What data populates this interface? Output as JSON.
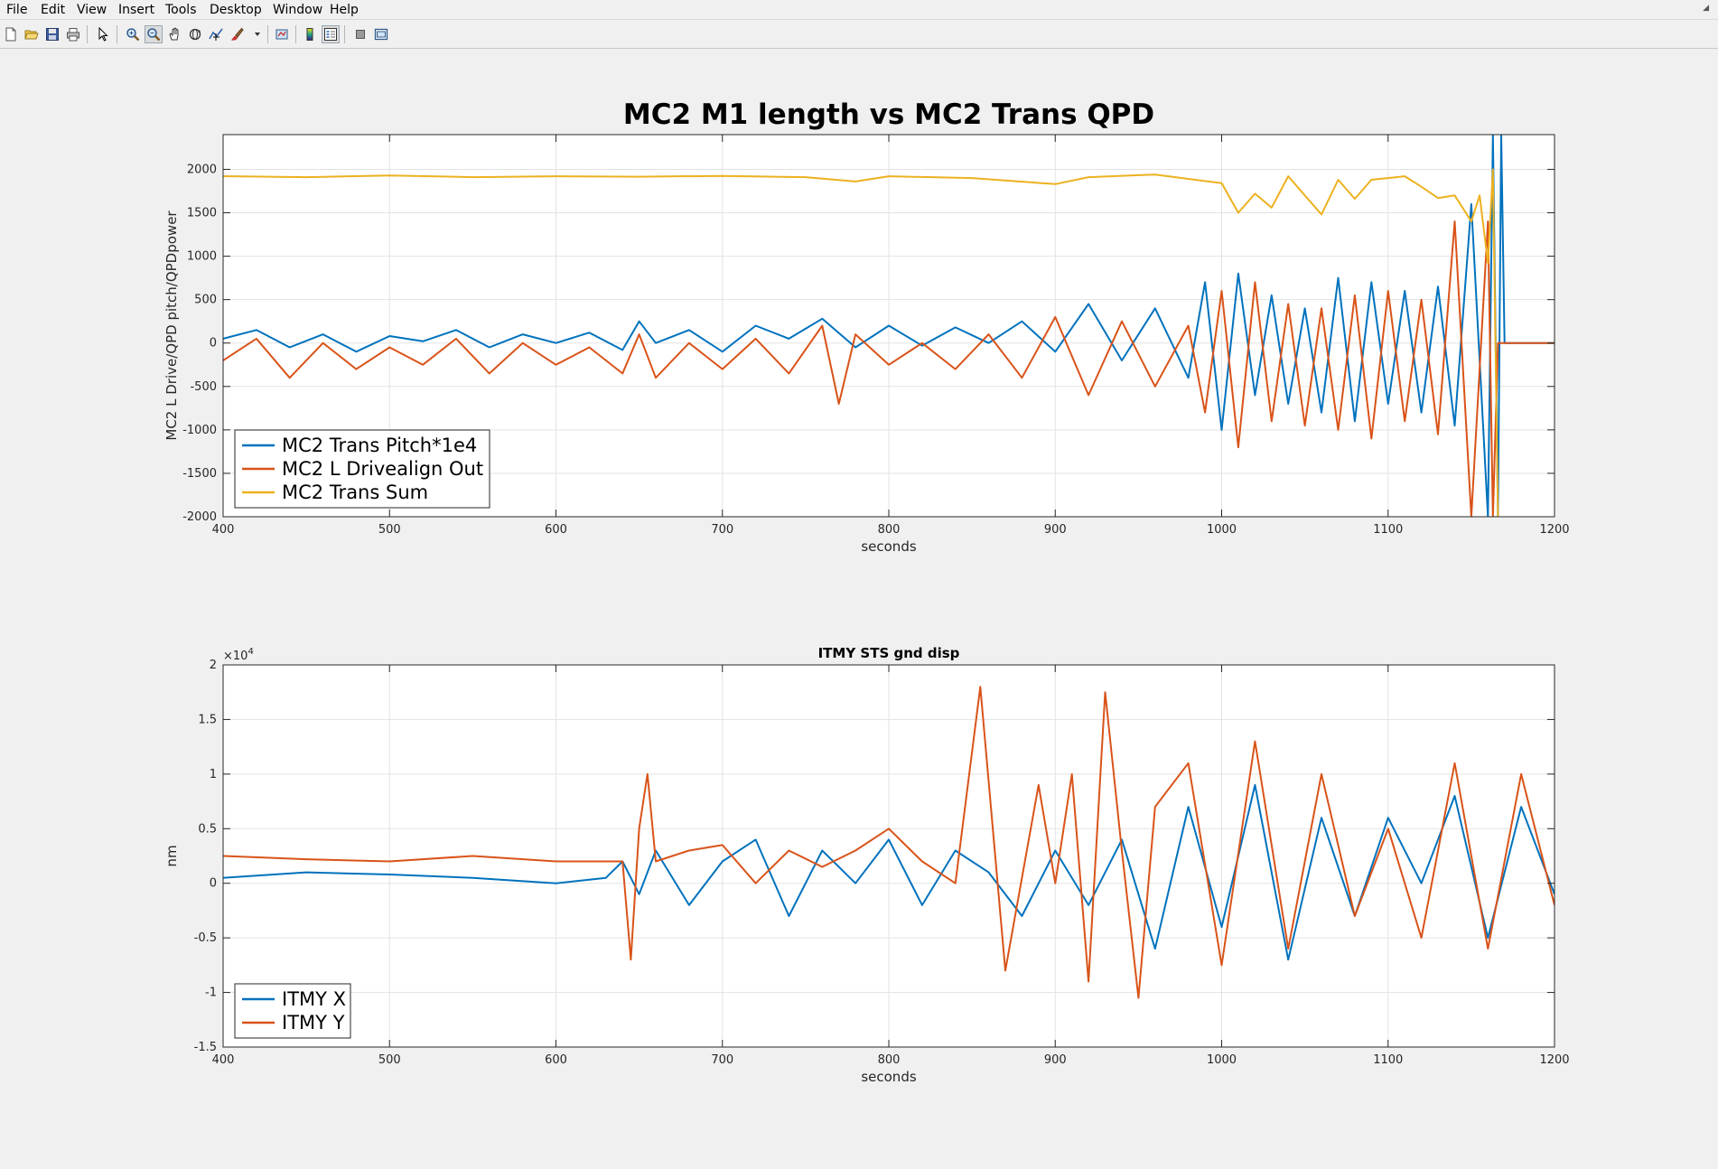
{
  "menu": [
    "File",
    "Edit",
    "View",
    "Insert",
    "Tools",
    "Desktop",
    "Window",
    "Help"
  ],
  "toolbar": {
    "buttons": [
      "new-figure-icon",
      "open-file-icon",
      "save-icon",
      "print-icon",
      "pointer-icon",
      "zoom-in-icon",
      "zoom-out-icon",
      "pan-icon",
      "rotate-icon",
      "data-cursor-icon",
      "brush-icon",
      "link-plot-icon",
      "colorbar-icon",
      "legend-icon",
      "hide-plot-tools-icon",
      "show-plot-tools-icon"
    ]
  },
  "colors": {
    "blue": "#0072bd",
    "orange": "#d95319",
    "yellow": "#edb120"
  },
  "chart_data": [
    {
      "type": "line",
      "title": "MC2 M1 length vs MC2 Trans QPD",
      "xlabel": "seconds",
      "ylabel": "MC2 L Drive/QPD pitch/QPDpower",
      "xlim": [
        400,
        1200
      ],
      "ylim": [
        -2000,
        2400
      ],
      "xticks": [
        400,
        500,
        600,
        700,
        800,
        900,
        1000,
        1100,
        1200
      ],
      "yticks": [
        -2000,
        -1500,
        -1000,
        -500,
        0,
        500,
        1000,
        1500,
        2000
      ],
      "grid": true,
      "legend": "bottom-left",
      "series": [
        {
          "name": "MC2 Trans Pitch*1e4",
          "color": "#0072bd",
          "x": [
            400,
            420,
            440,
            460,
            480,
            500,
            520,
            540,
            560,
            580,
            600,
            620,
            640,
            650,
            660,
            680,
            700,
            720,
            740,
            760,
            780,
            800,
            820,
            840,
            860,
            880,
            900,
            920,
            940,
            960,
            980,
            990,
            1000,
            1010,
            1020,
            1030,
            1040,
            1050,
            1060,
            1070,
            1080,
            1090,
            1100,
            1110,
            1120,
            1130,
            1140,
            1150,
            1160,
            1163,
            1166,
            1168,
            1170,
            1200
          ],
          "y": [
            50,
            150,
            -50,
            100,
            -100,
            80,
            20,
            150,
            -50,
            100,
            0,
            120,
            -80,
            250,
            0,
            150,
            -100,
            200,
            50,
            280,
            -50,
            200,
            -30,
            180,
            0,
            250,
            -100,
            450,
            -200,
            400,
            -400,
            700,
            -1000,
            800,
            -600,
            550,
            -700,
            400,
            -800,
            750,
            -900,
            700,
            -700,
            600,
            -800,
            650,
            -950,
            1600,
            -2000,
            2400,
            -2000,
            2400,
            0,
            0
          ]
        },
        {
          "name": "MC2 L Drivealign Out",
          "color": "#d95319",
          "x": [
            400,
            420,
            440,
            460,
            480,
            500,
            520,
            540,
            560,
            580,
            600,
            620,
            640,
            650,
            660,
            680,
            700,
            720,
            740,
            760,
            770,
            780,
            800,
            820,
            840,
            860,
            880,
            900,
            920,
            940,
            960,
            980,
            990,
            1000,
            1010,
            1020,
            1030,
            1040,
            1050,
            1060,
            1070,
            1080,
            1090,
            1100,
            1110,
            1120,
            1130,
            1140,
            1150,
            1160,
            1163,
            1166,
            1168,
            1200
          ],
          "y": [
            -200,
            50,
            -400,
            0,
            -300,
            -50,
            -250,
            50,
            -350,
            0,
            -250,
            -50,
            -350,
            100,
            -400,
            0,
            -300,
            50,
            -350,
            200,
            -700,
            100,
            -250,
            0,
            -300,
            100,
            -400,
            300,
            -600,
            250,
            -500,
            200,
            -800,
            600,
            -1200,
            700,
            -900,
            450,
            -950,
            400,
            -1000,
            550,
            -1100,
            600,
            -900,
            500,
            -1050,
            1400,
            -2000,
            1400,
            -2000,
            0,
            0,
            0
          ]
        },
        {
          "name": "MC2 Trans Sum",
          "color": "#edb120",
          "x": [
            400,
            450,
            500,
            550,
            600,
            650,
            700,
            750,
            780,
            800,
            850,
            900,
            920,
            960,
            980,
            1000,
            1010,
            1020,
            1030,
            1040,
            1050,
            1060,
            1070,
            1080,
            1090,
            1100,
            1110,
            1120,
            1130,
            1140,
            1150,
            1155,
            1160,
            1163,
            1166
          ],
          "y": [
            1920,
            1910,
            1930,
            1910,
            1920,
            1915,
            1925,
            1910,
            1860,
            1920,
            1900,
            1830,
            1910,
            1940,
            1890,
            1840,
            1500,
            1720,
            1560,
            1920,
            1700,
            1480,
            1880,
            1660,
            1880,
            1900,
            1920,
            1800,
            1670,
            1700,
            1400,
            1700,
            920,
            2000,
            -2000
          ]
        }
      ]
    },
    {
      "type": "line",
      "title": "ITMY STS gnd disp",
      "xlabel": "seconds",
      "ylabel": "nm",
      "exponent_label": "×10",
      "exponent_power": "4",
      "xlim": [
        400,
        1200
      ],
      "ylim": [
        -1.5,
        2
      ],
      "xticks": [
        400,
        500,
        600,
        700,
        800,
        900,
        1000,
        1100,
        1200
      ],
      "yticks": [
        -1.5,
        -1,
        -0.5,
        0,
        0.5,
        1,
        1.5,
        2
      ],
      "grid": true,
      "legend": "bottom-left",
      "series": [
        {
          "name": "ITMY X",
          "color": "#0072bd",
          "x": [
            400,
            450,
            500,
            550,
            600,
            630,
            640,
            650,
            660,
            680,
            700,
            720,
            740,
            760,
            780,
            800,
            820,
            840,
            860,
            880,
            900,
            920,
            940,
            960,
            980,
            1000,
            1020,
            1040,
            1060,
            1080,
            1100,
            1120,
            1140,
            1160,
            1180,
            1200
          ],
          "y": [
            0.05,
            0.1,
            0.08,
            0.05,
            0.0,
            0.05,
            0.2,
            -0.1,
            0.3,
            -0.2,
            0.2,
            0.4,
            -0.3,
            0.3,
            0.0,
            0.4,
            -0.2,
            0.3,
            0.1,
            -0.3,
            0.3,
            -0.2,
            0.4,
            -0.6,
            0.7,
            -0.4,
            0.9,
            -0.7,
            0.6,
            -0.3,
            0.6,
            0.0,
            0.8,
            -0.5,
            0.7,
            -0.1
          ]
        },
        {
          "name": "ITMY Y",
          "color": "#d95319",
          "x": [
            400,
            450,
            500,
            550,
            600,
            640,
            645,
            650,
            655,
            660,
            680,
            700,
            720,
            740,
            760,
            780,
            800,
            820,
            840,
            855,
            870,
            890,
            900,
            910,
            920,
            930,
            940,
            950,
            960,
            980,
            1000,
            1020,
            1040,
            1060,
            1080,
            1100,
            1120,
            1140,
            1160,
            1180,
            1200
          ],
          "y": [
            0.25,
            0.22,
            0.2,
            0.25,
            0.2,
            0.2,
            -0.7,
            0.5,
            1.0,
            0.2,
            0.3,
            0.35,
            0.0,
            0.3,
            0.15,
            0.3,
            0.5,
            0.2,
            0.0,
            1.8,
            -0.8,
            0.9,
            0.0,
            1.0,
            -0.9,
            1.75,
            0.3,
            -1.05,
            0.7,
            1.1,
            -0.75,
            1.3,
            -0.6,
            1.0,
            -0.3,
            0.5,
            -0.5,
            1.1,
            -0.6,
            1.0,
            -0.2
          ]
        }
      ]
    }
  ]
}
